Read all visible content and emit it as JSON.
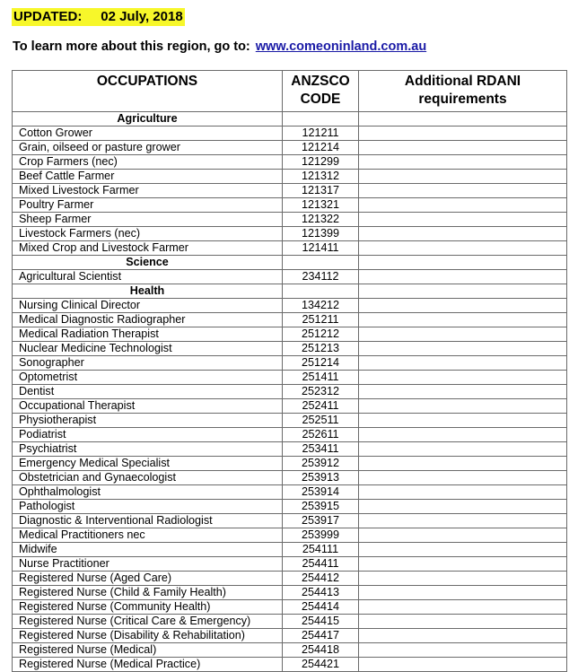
{
  "header": {
    "updated_label": "UPDATED:     02 July, 2018",
    "learn_text": "To learn more about this region, go to:",
    "link": "www.comeoninland.com.au",
    "highlight_color": "#f7f72a",
    "link_color": "#1a1aa6"
  },
  "table": {
    "columns": [
      "OCCUPATIONS",
      "ANZSCO CODE",
      "Additional RDANI requirements"
    ],
    "rows": [
      {
        "category": "Agriculture"
      },
      {
        "occupation": "Cotton Grower",
        "code": "121211"
      },
      {
        "occupation": "Grain, oilseed or pasture grower",
        "code": "121214"
      },
      {
        "occupation": "Crop Farmers (nec)",
        "code": "121299"
      },
      {
        "occupation": "Beef Cattle Farmer",
        "code": "121312"
      },
      {
        "occupation": "Mixed Livestock Farmer",
        "code": "121317"
      },
      {
        "occupation": "Poultry Farmer",
        "code": "121321"
      },
      {
        "occupation": "Sheep Farmer",
        "code": "121322"
      },
      {
        "occupation": "Livestock Farmers (nec)",
        "code": "121399"
      },
      {
        "occupation": "Mixed Crop and Livestock Farmer",
        "code": "121411"
      },
      {
        "category": "Science"
      },
      {
        "occupation": "Agricultural Scientist",
        "code": "234112"
      },
      {
        "category": "Health"
      },
      {
        "occupation": "Nursing Clinical Director",
        "code": "134212"
      },
      {
        "occupation": "Medical Diagnostic Radiographer",
        "code": "251211"
      },
      {
        "occupation": "Medical Radiation Therapist",
        "code": "251212"
      },
      {
        "occupation": "Nuclear Medicine Technologist",
        "code": "251213"
      },
      {
        "occupation": "Sonographer",
        "code": "251214"
      },
      {
        "occupation": "Optometrist",
        "code": "251411"
      },
      {
        "occupation": "Dentist",
        "code": "252312"
      },
      {
        "occupation": "Occupational Therapist",
        "code": "252411"
      },
      {
        "occupation": "Physiotherapist",
        "code": "252511"
      },
      {
        "occupation": "Podiatrist",
        "code": "252611"
      },
      {
        "occupation": "Psychiatrist",
        "code": "253411"
      },
      {
        "occupation": "Emergency Medical Specialist",
        "code": "253912"
      },
      {
        "occupation": "Obstetrician and Gynaecologist",
        "code": "253913"
      },
      {
        "occupation": "Ophthalmologist",
        "code": "253914"
      },
      {
        "occupation": "Pathologist",
        "code": "253915"
      },
      {
        "occupation": "Diagnostic & Interventional Radiologist",
        "code": "253917"
      },
      {
        "occupation": "Medical Practitioners nec",
        "code": "253999"
      },
      {
        "occupation": "Midwife",
        "code": "254111"
      },
      {
        "occupation": "Nurse Practitioner",
        "code": "254411"
      },
      {
        "occupation": "Registered Nurse (Aged Care)",
        "code": "254412"
      },
      {
        "occupation": "Registered Nurse (Child & Family Health)",
        "code": "254413"
      },
      {
        "occupation": "Registered Nurse (Community Health)",
        "code": "254414"
      },
      {
        "occupation": "Registered Nurse (Critical Care & Emergency)",
        "code": "254415"
      },
      {
        "occupation": "Registered Nurse (Disability & Rehabilitation)",
        "code": "254417"
      },
      {
        "occupation": "Registered Nurse (Medical)",
        "code": "254418"
      },
      {
        "occupation": "Registered Nurse (Medical Practice)",
        "code": "254421"
      }
    ]
  }
}
